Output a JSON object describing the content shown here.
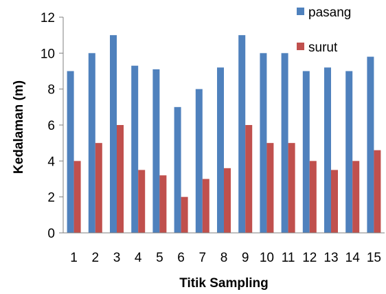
{
  "chart_data": {
    "type": "bar",
    "title": "",
    "xlabel": "Titik Sampling",
    "ylabel": "Kedalaman (m)",
    "categories": [
      "1",
      "2",
      "3",
      "4",
      "5",
      "6",
      "7",
      "8",
      "9",
      "10",
      "11",
      "12",
      "13",
      "14",
      "15"
    ],
    "series": [
      {
        "name": "pasang",
        "color": "#4f81bd",
        "values": [
          9,
          10,
          11,
          9.3,
          9.1,
          7,
          8,
          9.2,
          11,
          10,
          10,
          9,
          9.2,
          9,
          9.8
        ]
      },
      {
        "name": "surut",
        "color": "#c0504d",
        "values": [
          4,
          5,
          6,
          3.5,
          3.2,
          2,
          3,
          3.6,
          6,
          5,
          5,
          4,
          3.5,
          4,
          4.6
        ]
      }
    ],
    "ylim": [
      0,
      12
    ],
    "yticks": [
      "0",
      "2",
      "4",
      "6",
      "8",
      "10",
      "12"
    ],
    "grid": false,
    "legend": "top-right"
  }
}
